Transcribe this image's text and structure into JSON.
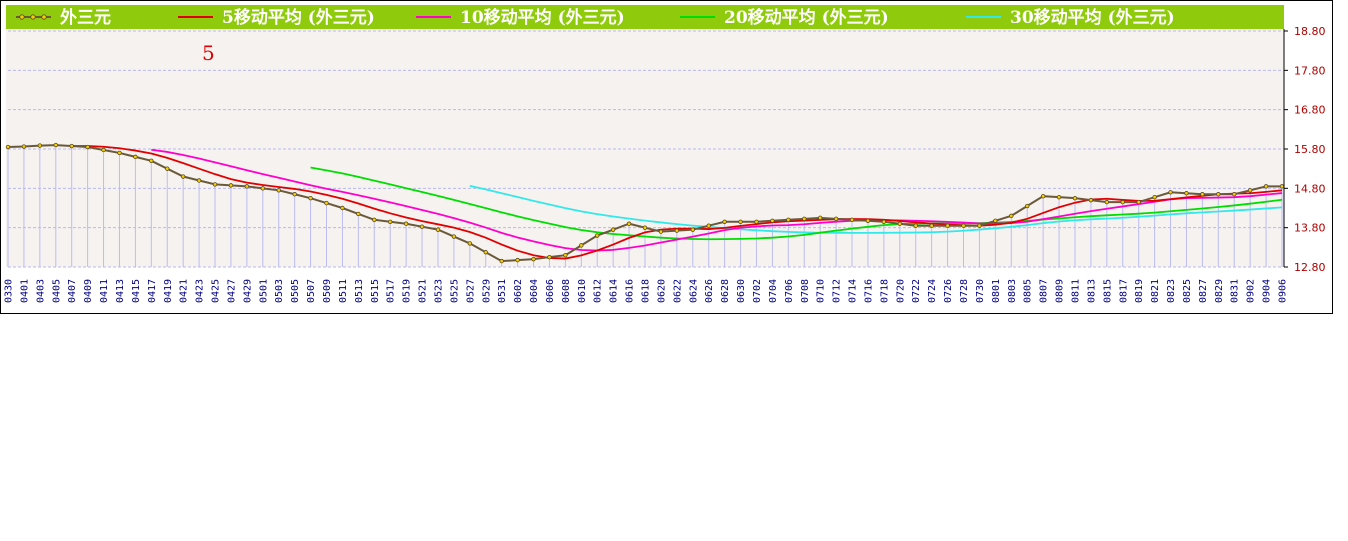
{
  "chart_data": {
    "type": "line",
    "annotation": "5",
    "legend": {
      "placement": "top",
      "background": "#8fcb0c"
    },
    "series": [
      {
        "name": "外三元",
        "color": "#6b5a3a"
      },
      {
        "name": "5移动平均 (外三元)",
        "color": "#e00000"
      },
      {
        "name": "10移动平均 (外三元)",
        "color": "#ff00cc"
      },
      {
        "name": "20移动平均 (外三元)",
        "color": "#00dd00"
      },
      {
        "name": "30移动平均 (外三元)",
        "color": "#33e8e8"
      }
    ],
    "x": [
      "0330",
      "0401",
      "0403",
      "0405",
      "0407",
      "0409",
      "0411",
      "0413",
      "0415",
      "0417",
      "0419",
      "0421",
      "0423",
      "0425",
      "0427",
      "0429",
      "0501",
      "0503",
      "0505",
      "0507",
      "0509",
      "0511",
      "0513",
      "0515",
      "0517",
      "0519",
      "0521",
      "0523",
      "0525",
      "0527",
      "0529",
      "0531",
      "0602",
      "0604",
      "0606",
      "0608",
      "0610",
      "0612",
      "0614",
      "0616",
      "0618",
      "0620",
      "0622",
      "0624",
      "0626",
      "0628",
      "0630",
      "0702",
      "0704",
      "0706",
      "0708",
      "0710",
      "0712",
      "0714",
      "0716",
      "0718",
      "0720",
      "0722",
      "0724",
      "0726",
      "0728",
      "0730",
      "0801",
      "0803",
      "0805",
      "0807",
      "0809",
      "0811",
      "0813",
      "0815",
      "0817",
      "0819",
      "0821",
      "0823",
      "0825",
      "0827",
      "0829",
      "0831",
      "0902",
      "0904",
      "0906"
    ],
    "price_anchors": [
      [
        0,
        15.85
      ],
      [
        3,
        15.9
      ],
      [
        5,
        15.85
      ],
      [
        7,
        15.7
      ],
      [
        9,
        15.5
      ],
      [
        11,
        15.1
      ],
      [
        13,
        14.9
      ],
      [
        15,
        14.85
      ],
      [
        17,
        14.75
      ],
      [
        19,
        14.55
      ],
      [
        21,
        14.3
      ],
      [
        23,
        14.0
      ],
      [
        25,
        13.9
      ],
      [
        27,
        13.75
      ],
      [
        29,
        13.4
      ],
      [
        31,
        12.95
      ],
      [
        33,
        13.0
      ],
      [
        35,
        13.1
      ],
      [
        37,
        13.6
      ],
      [
        39,
        13.9
      ],
      [
        41,
        13.7
      ],
      [
        43,
        13.75
      ],
      [
        45,
        13.95
      ],
      [
        47,
        13.95
      ],
      [
        49,
        14.0
      ],
      [
        51,
        14.05
      ],
      [
        53,
        14.0
      ],
      [
        55,
        13.95
      ],
      [
        57,
        13.85
      ],
      [
        59,
        13.85
      ],
      [
        61,
        13.85
      ],
      [
        63,
        14.1
      ],
      [
        65,
        14.6
      ],
      [
        67,
        14.55
      ],
      [
        69,
        14.45
      ],
      [
        71,
        14.45
      ],
      [
        73,
        14.7
      ],
      [
        75,
        14.65
      ],
      [
        77,
        14.65
      ],
      [
        79,
        14.85
      ],
      [
        80,
        14.85
      ]
    ],
    "ylabel": "",
    "xlabel": "",
    "ylim": [
      12.8,
      18.8
    ],
    "yticks": [
      "18.80",
      "17.80",
      "16.80",
      "15.80",
      "14.80",
      "13.80",
      "12.80"
    ],
    "grid": true
  }
}
